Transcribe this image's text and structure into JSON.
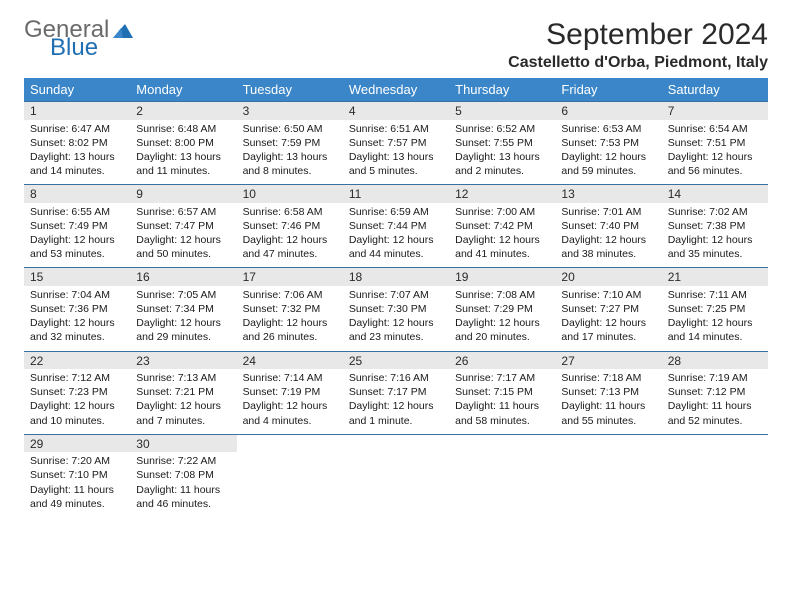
{
  "logo": {
    "general": "General",
    "blue": "Blue"
  },
  "title": "September 2024",
  "location": "Castelletto d'Orba, Piedmont, Italy",
  "weekdays": [
    "Sunday",
    "Monday",
    "Tuesday",
    "Wednesday",
    "Thursday",
    "Friday",
    "Saturday"
  ],
  "colors": {
    "header_bg": "#3a86c8",
    "header_text": "#ffffff",
    "daynum_bg": "#e8e8e8",
    "rule": "#3a6fa0",
    "logo_gray": "#6b6b6b",
    "logo_blue": "#1f6fb2"
  },
  "typography": {
    "title_fontsize": 30,
    "location_fontsize": 16,
    "weekday_fontsize": 13,
    "daynum_fontsize": 12,
    "cell_fontsize": 10.5
  },
  "weeks": [
    [
      {
        "n": "1",
        "sr": "6:47 AM",
        "ss": "8:02 PM",
        "dl": "13 hours and 14 minutes."
      },
      {
        "n": "2",
        "sr": "6:48 AM",
        "ss": "8:00 PM",
        "dl": "13 hours and 11 minutes."
      },
      {
        "n": "3",
        "sr": "6:50 AM",
        "ss": "7:59 PM",
        "dl": "13 hours and 8 minutes."
      },
      {
        "n": "4",
        "sr": "6:51 AM",
        "ss": "7:57 PM",
        "dl": "13 hours and 5 minutes."
      },
      {
        "n": "5",
        "sr": "6:52 AM",
        "ss": "7:55 PM",
        "dl": "13 hours and 2 minutes."
      },
      {
        "n": "6",
        "sr": "6:53 AM",
        "ss": "7:53 PM",
        "dl": "12 hours and 59 minutes."
      },
      {
        "n": "7",
        "sr": "6:54 AM",
        "ss": "7:51 PM",
        "dl": "12 hours and 56 minutes."
      }
    ],
    [
      {
        "n": "8",
        "sr": "6:55 AM",
        "ss": "7:49 PM",
        "dl": "12 hours and 53 minutes."
      },
      {
        "n": "9",
        "sr": "6:57 AM",
        "ss": "7:47 PM",
        "dl": "12 hours and 50 minutes."
      },
      {
        "n": "10",
        "sr": "6:58 AM",
        "ss": "7:46 PM",
        "dl": "12 hours and 47 minutes."
      },
      {
        "n": "11",
        "sr": "6:59 AM",
        "ss": "7:44 PM",
        "dl": "12 hours and 44 minutes."
      },
      {
        "n": "12",
        "sr": "7:00 AM",
        "ss": "7:42 PM",
        "dl": "12 hours and 41 minutes."
      },
      {
        "n": "13",
        "sr": "7:01 AM",
        "ss": "7:40 PM",
        "dl": "12 hours and 38 minutes."
      },
      {
        "n": "14",
        "sr": "7:02 AM",
        "ss": "7:38 PM",
        "dl": "12 hours and 35 minutes."
      }
    ],
    [
      {
        "n": "15",
        "sr": "7:04 AM",
        "ss": "7:36 PM",
        "dl": "12 hours and 32 minutes."
      },
      {
        "n": "16",
        "sr": "7:05 AM",
        "ss": "7:34 PM",
        "dl": "12 hours and 29 minutes."
      },
      {
        "n": "17",
        "sr": "7:06 AM",
        "ss": "7:32 PM",
        "dl": "12 hours and 26 minutes."
      },
      {
        "n": "18",
        "sr": "7:07 AM",
        "ss": "7:30 PM",
        "dl": "12 hours and 23 minutes."
      },
      {
        "n": "19",
        "sr": "7:08 AM",
        "ss": "7:29 PM",
        "dl": "12 hours and 20 minutes."
      },
      {
        "n": "20",
        "sr": "7:10 AM",
        "ss": "7:27 PM",
        "dl": "12 hours and 17 minutes."
      },
      {
        "n": "21",
        "sr": "7:11 AM",
        "ss": "7:25 PM",
        "dl": "12 hours and 14 minutes."
      }
    ],
    [
      {
        "n": "22",
        "sr": "7:12 AM",
        "ss": "7:23 PM",
        "dl": "12 hours and 10 minutes."
      },
      {
        "n": "23",
        "sr": "7:13 AM",
        "ss": "7:21 PM",
        "dl": "12 hours and 7 minutes."
      },
      {
        "n": "24",
        "sr": "7:14 AM",
        "ss": "7:19 PM",
        "dl": "12 hours and 4 minutes."
      },
      {
        "n": "25",
        "sr": "7:16 AM",
        "ss": "7:17 PM",
        "dl": "12 hours and 1 minute."
      },
      {
        "n": "26",
        "sr": "7:17 AM",
        "ss": "7:15 PM",
        "dl": "11 hours and 58 minutes."
      },
      {
        "n": "27",
        "sr": "7:18 AM",
        "ss": "7:13 PM",
        "dl": "11 hours and 55 minutes."
      },
      {
        "n": "28",
        "sr": "7:19 AM",
        "ss": "7:12 PM",
        "dl": "11 hours and 52 minutes."
      }
    ],
    [
      {
        "n": "29",
        "sr": "7:20 AM",
        "ss": "7:10 PM",
        "dl": "11 hours and 49 minutes."
      },
      {
        "n": "30",
        "sr": "7:22 AM",
        "ss": "7:08 PM",
        "dl": "11 hours and 46 minutes."
      },
      null,
      null,
      null,
      null,
      null
    ]
  ],
  "labels": {
    "sunrise": "Sunrise:",
    "sunset": "Sunset:",
    "daylight": "Daylight:"
  }
}
